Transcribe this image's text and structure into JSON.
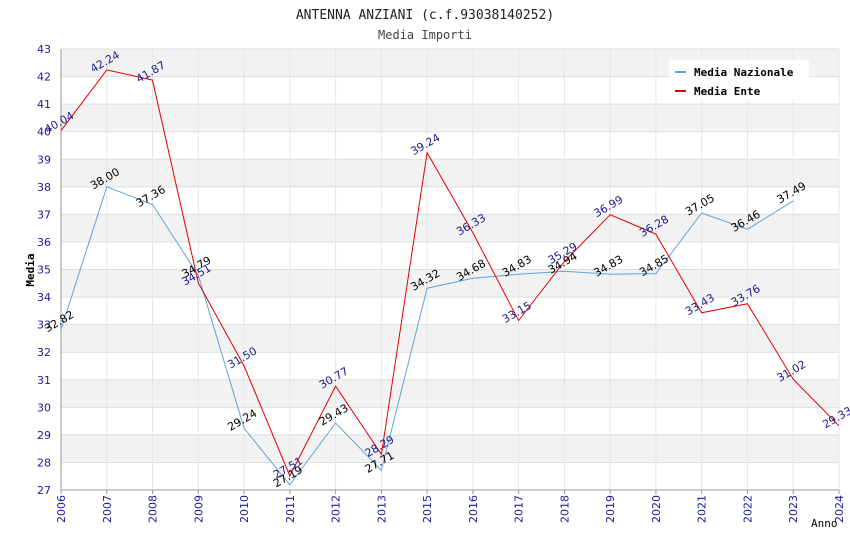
{
  "chart_data": {
    "type": "line",
    "title": "ANTENNA ANZIANI (c.f.93038140252)",
    "subtitle": "Media Importi",
    "xlabel": "Anno",
    "ylabel": "Media",
    "ylim": [
      27,
      43
    ],
    "yticks": [
      "27",
      "28",
      "29",
      "30",
      "31",
      "32",
      "33",
      "34",
      "35",
      "36",
      "37",
      "38",
      "39",
      "40",
      "41",
      "42",
      "43"
    ],
    "categories": [
      "2006",
      "2007",
      "2008",
      "2009",
      "2010",
      "2011",
      "2012",
      "2013",
      "2015",
      "2016",
      "2017",
      "2018",
      "2019",
      "2020",
      "2021",
      "2022",
      "2023",
      "2024"
    ],
    "legend_position": "top-right",
    "grid": true,
    "series": [
      {
        "name": "Media Nazionale",
        "color": "#5fa3e0",
        "label_color": "#000000",
        "values": [
          32.82,
          38.0,
          37.36,
          34.79,
          29.24,
          27.19,
          29.43,
          27.71,
          34.32,
          34.68,
          34.83,
          34.94,
          34.83,
          34.85,
          37.05,
          36.46,
          37.49,
          null
        ],
        "labels": [
          "32.82",
          "38.00",
          "37.36",
          "34.79",
          "29.24",
          "27.19",
          "29.43",
          "27.71",
          "34.32",
          "34.68",
          "34.83",
          "34.94",
          "34.83",
          "34.85",
          "37.05",
          "36.46",
          "37.49",
          ""
        ]
      },
      {
        "name": "Media Ente",
        "color": "#e00000",
        "label_color": "#1a1a8c",
        "values": [
          40.04,
          42.24,
          41.87,
          34.51,
          31.5,
          27.51,
          30.77,
          28.29,
          39.24,
          36.33,
          33.15,
          35.29,
          36.99,
          36.28,
          33.43,
          33.76,
          31.02,
          29.33
        ],
        "labels": [
          "40.04",
          "42.24",
          "41.87",
          "34.51",
          "31.50",
          "27.51",
          "30.77",
          "28.29",
          "39.24",
          "36.33",
          "33.15",
          "35.29",
          "36.99",
          "36.28",
          "33.43",
          "33.76",
          "31.02",
          "29.33"
        ]
      }
    ]
  }
}
